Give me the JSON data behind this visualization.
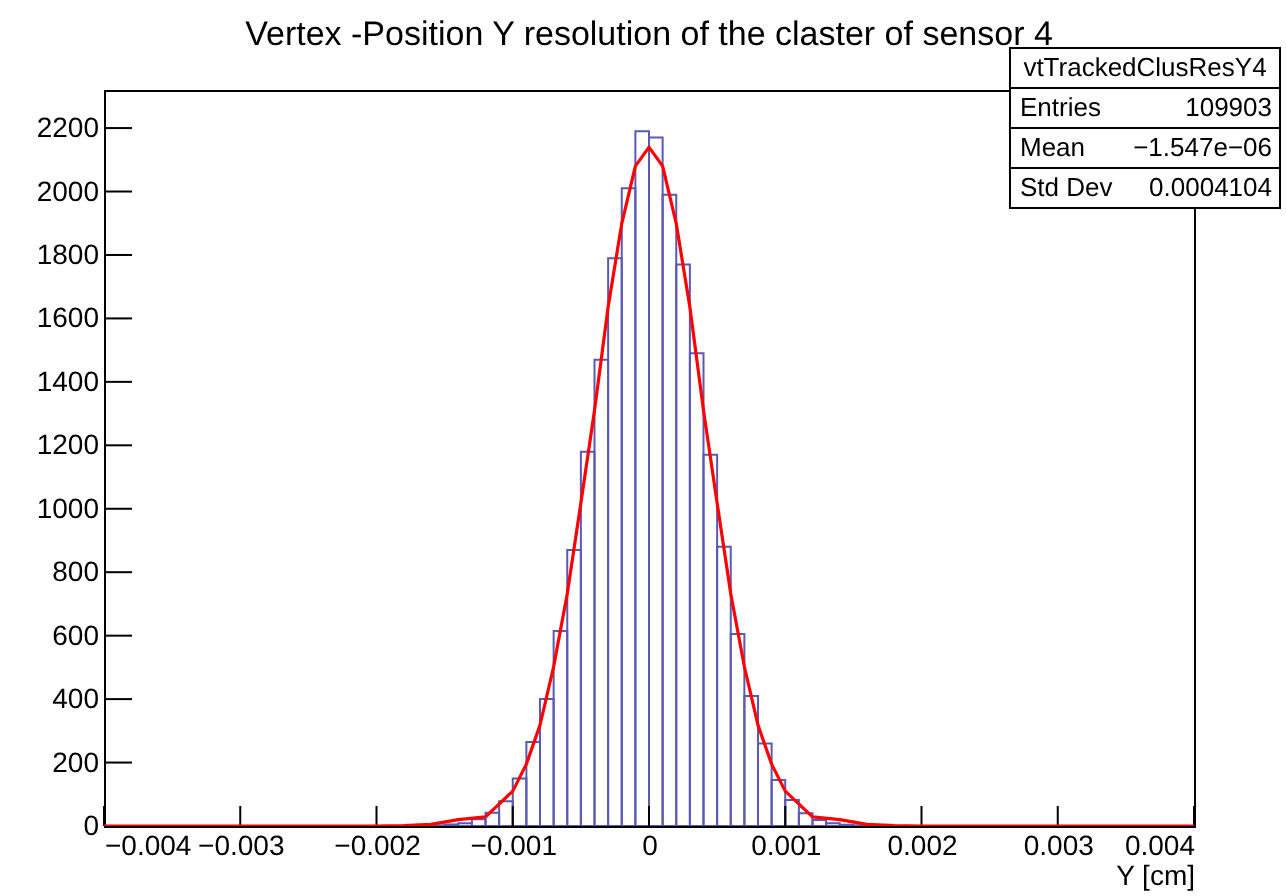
{
  "chart_data": {
    "type": "histogram",
    "title": "Vertex -Position  Y resolution of the claster of sensor 4",
    "xlabel": "Y [cm]",
    "bins": [
      -0.0018,
      -0.0017,
      -0.0016,
      -0.0015,
      -0.0014,
      -0.0013,
      -0.0012,
      -0.0011,
      -0.001,
      -0.0009,
      -0.0008,
      -0.0007,
      -0.0006,
      -0.0005,
      -0.0004,
      -0.0003,
      -0.0002,
      -0.0001,
      0,
      0.0001,
      0.0002,
      0.0003,
      0.0004,
      0.0005,
      0.0006,
      0.0007,
      0.0008,
      0.0009,
      0.001,
      0.0011,
      0.0012,
      0.0013,
      0.0014,
      0.0015,
      0.0016,
      0.0017,
      0.0018
    ],
    "values": [
      0,
      1,
      2,
      5,
      9,
      21,
      42,
      78,
      150,
      265,
      400,
      615,
      870,
      1180,
      1470,
      1790,
      2010,
      2190,
      2170,
      1990,
      1770,
      1490,
      1170,
      880,
      605,
      410,
      260,
      145,
      82,
      40,
      19,
      9,
      4,
      2,
      1,
      0
    ],
    "series": [
      {
        "type": "line",
        "color": "#ff0000",
        "x": [
          -0.004,
          -0.002,
          -0.0018,
          -0.0016,
          -0.0014,
          -0.0012,
          -0.001,
          -0.0009,
          -0.0008,
          -0.0007,
          -0.0006,
          -0.0005,
          -0.0004,
          -0.0003,
          -0.0002,
          -0.0001,
          0,
          0.0001,
          0.0002,
          0.0003,
          0.0004,
          0.0005,
          0.0006,
          0.0007,
          0.0008,
          0.0009,
          0.001,
          0.0012,
          0.0014,
          0.0016,
          0.0018,
          0.002,
          0.004
        ],
        "values": [
          0,
          0,
          1,
          5,
          20,
          29,
          110,
          195,
          318,
          502,
          732,
          1018,
          1310,
          1636,
          1899,
          2080,
          2140,
          2080,
          1899,
          1636,
          1310,
          1018,
          732,
          502,
          318,
          195,
          110,
          29,
          20,
          5,
          1,
          0,
          0
        ]
      }
    ],
    "color": "#5a5ab4",
    "xlim": [
      -0.004,
      0.004
    ],
    "xticks": [
      {
        "value": -0.004,
        "label": "−0.004"
      },
      {
        "value": -0.003,
        "label": "−0.003"
      },
      {
        "value": -0.002,
        "label": "−0.002"
      },
      {
        "value": -0.001,
        "label": "−0.001"
      },
      0,
      0.001,
      0.002,
      0.003,
      0.004
    ],
    "ylim": [
      0,
      2320
    ],
    "yticks": [
      0,
      200,
      400,
      600,
      800,
      1000,
      1200,
      1400,
      1600,
      1800,
      2000,
      2200
    ],
    "grid": false,
    "annotations": [
      "vtTrackedClusResY4",
      "Entries",
      "109903",
      "Mean",
      "−1.547e−06",
      "Std Dev",
      "0.0004104"
    ]
  }
}
